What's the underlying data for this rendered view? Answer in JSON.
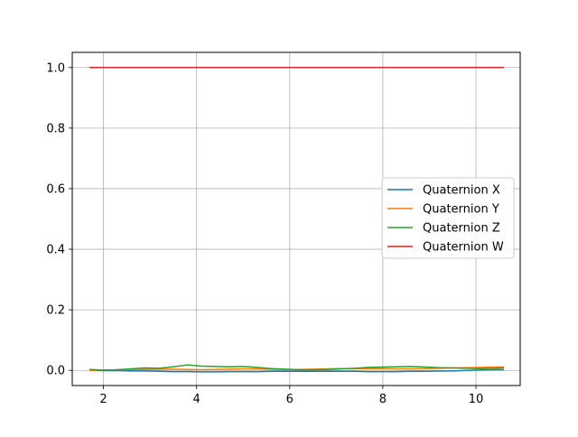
{
  "chart_data": {
    "type": "line",
    "title": "",
    "xlabel": "",
    "ylabel": "",
    "xlim": [
      1.33,
      10.95
    ],
    "ylim": [
      -0.05,
      1.05
    ],
    "x_ticks": [
      2,
      4,
      6,
      8,
      10
    ],
    "x_tick_labels": [
      "2",
      "4",
      "6",
      "8",
      "10"
    ],
    "y_ticks": [
      0.0,
      0.2,
      0.4,
      0.6,
      0.8,
      1.0
    ],
    "y_tick_labels": [
      "0.0",
      "0.2",
      "0.4",
      "0.6",
      "0.8",
      "1.0"
    ],
    "grid": true,
    "legend_position": "center-right",
    "x": [
      1.7,
      2.0,
      2.3,
      2.6,
      2.9,
      3.2,
      3.5,
      3.8,
      4.1,
      4.4,
      4.7,
      5.0,
      5.3,
      5.6,
      5.9,
      6.2,
      6.5,
      6.8,
      7.1,
      7.4,
      7.7,
      8.0,
      8.3,
      8.6,
      8.9,
      9.2,
      9.5,
      9.8,
      10.1,
      10.4,
      10.6
    ],
    "series": [
      {
        "name": "Quaternion X",
        "color": "#1f77b4",
        "values": [
          0.0,
          -0.001,
          -0.001,
          -0.002,
          -0.002,
          -0.003,
          -0.004,
          -0.004,
          -0.005,
          -0.005,
          -0.004,
          -0.004,
          -0.004,
          -0.003,
          -0.003,
          -0.003,
          -0.003,
          -0.003,
          -0.003,
          -0.003,
          -0.004,
          -0.004,
          -0.004,
          -0.003,
          -0.003,
          -0.002,
          -0.002,
          0.0,
          0.001,
          0.002,
          0.002
        ]
      },
      {
        "name": "Quaternion Y",
        "color": "#ff7f0e",
        "values": [
          0.0,
          0.001,
          0.002,
          0.003,
          0.003,
          0.004,
          0.004,
          0.003,
          0.002,
          0.003,
          0.004,
          0.005,
          0.005,
          0.004,
          0.003,
          0.003,
          0.004,
          0.005,
          0.006,
          0.006,
          0.006,
          0.006,
          0.005,
          0.005,
          0.006,
          0.007,
          0.008,
          0.009,
          0.01,
          0.011,
          0.011
        ]
      },
      {
        "name": "Quaternion Z",
        "color": "#2ca02c",
        "values": [
          0.003,
          0.001,
          0.002,
          0.005,
          0.008,
          0.007,
          0.012,
          0.018,
          0.014,
          0.013,
          0.012,
          0.013,
          0.01,
          0.006,
          0.004,
          0.002,
          0.002,
          0.003,
          0.005,
          0.007,
          0.01,
          0.011,
          0.012,
          0.013,
          0.011,
          0.009,
          0.008,
          0.007,
          0.006,
          0.007,
          0.008
        ]
      },
      {
        "name": "Quaternion W",
        "color": "#d62728",
        "values": [
          1.0,
          1.0,
          1.0,
          1.0,
          1.0,
          1.0,
          1.0,
          1.0,
          1.0,
          1.0,
          1.0,
          1.0,
          1.0,
          1.0,
          1.0,
          1.0,
          1.0,
          1.0,
          1.0,
          1.0,
          1.0,
          1.0,
          1.0,
          1.0,
          1.0,
          1.0,
          1.0,
          1.0,
          1.0,
          1.0,
          1.0
        ]
      }
    ]
  }
}
